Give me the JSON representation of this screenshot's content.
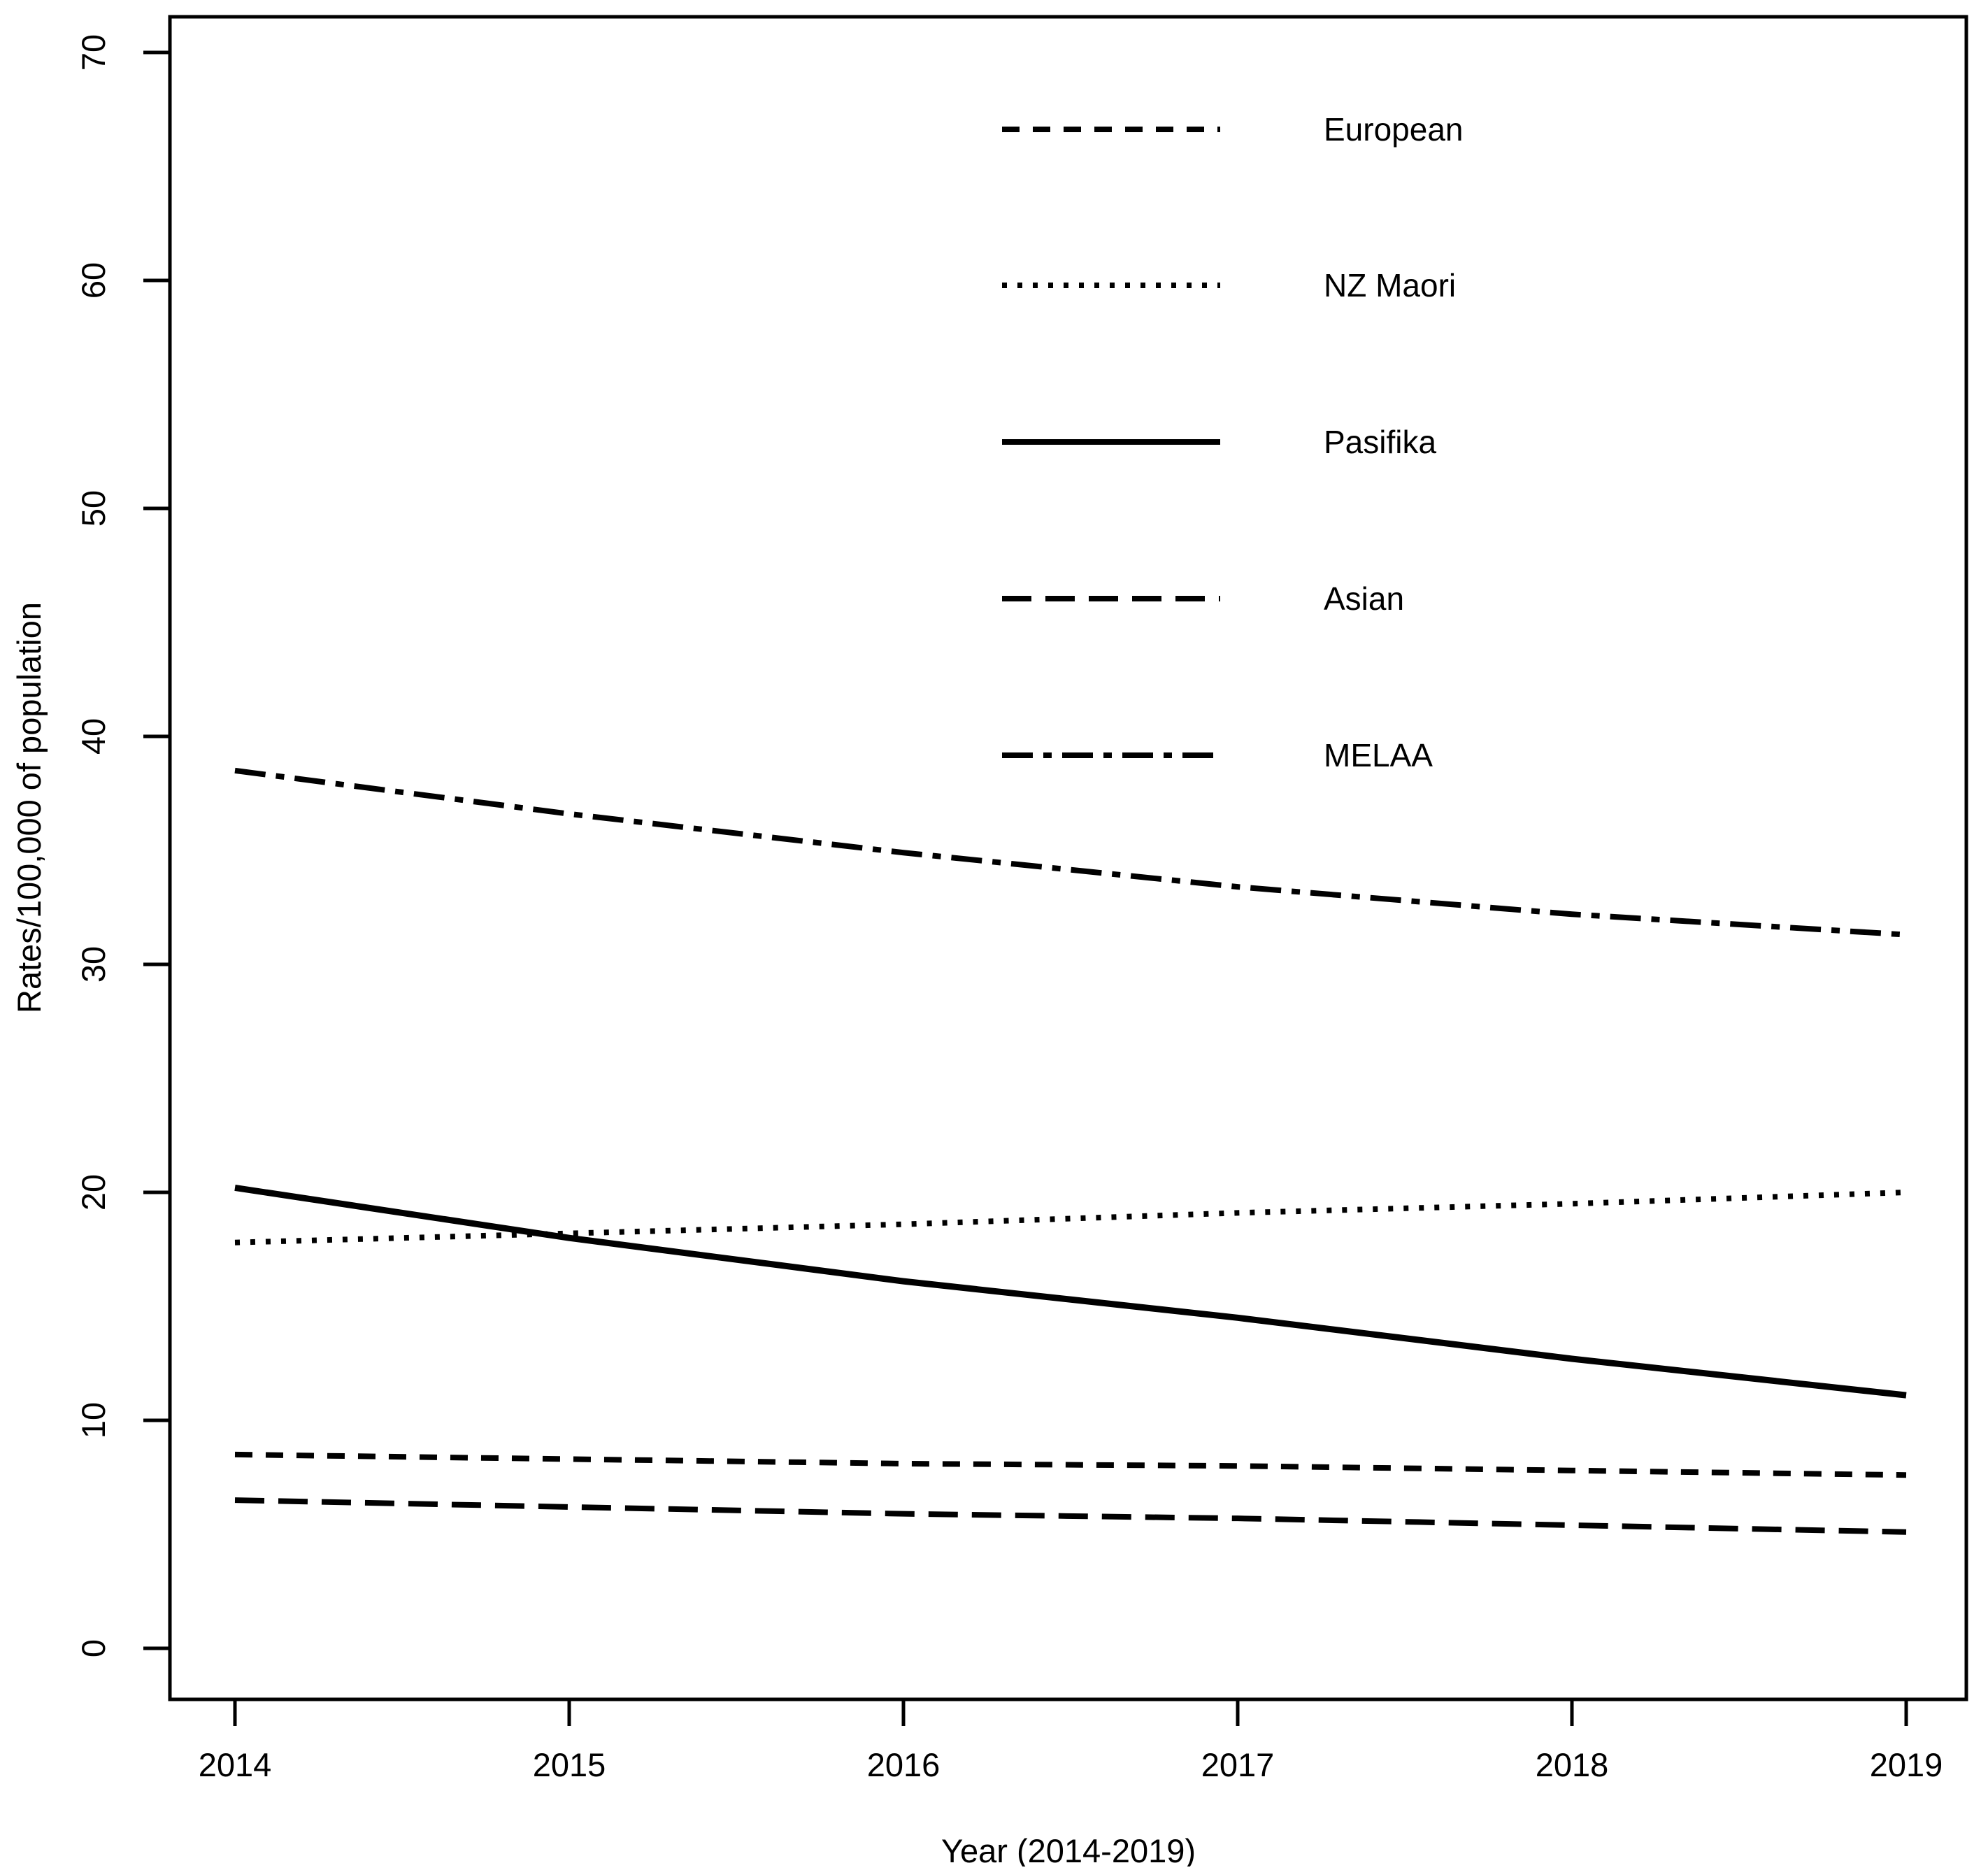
{
  "chart_data": {
    "type": "line",
    "title": "",
    "xlabel": "Year (2014-2019)",
    "ylabel": "Rates/100,000 of population",
    "x": [
      2014,
      2015,
      2016,
      2017,
      2018,
      2019
    ],
    "x_tick_labels": [
      "2014",
      "2015",
      "2016",
      "2017",
      "2018",
      "2019"
    ],
    "y_ticks": [
      0,
      10,
      20,
      30,
      40,
      50,
      60,
      70
    ],
    "ylim": [
      -2,
      71
    ],
    "xlim": [
      2014,
      2019
    ],
    "grid": "off",
    "legend_position": "top-right-inside",
    "line_color": "#000000",
    "background_color": "#ffffff",
    "series": [
      {
        "name": "European",
        "line_style": "dashed",
        "values": [
          8.5,
          8.3,
          8.1,
          8.0,
          7.8,
          7.6
        ]
      },
      {
        "name": "NZ Maori",
        "line_style": "dotted",
        "values": [
          17.8,
          18.2,
          18.6,
          19.1,
          19.5,
          20.0
        ]
      },
      {
        "name": "Pasifika",
        "line_style": "solid",
        "values": [
          20.2,
          18.0,
          16.1,
          14.5,
          12.7,
          11.1
        ]
      },
      {
        "name": "Asian",
        "line_style": "longdash",
        "values": [
          6.5,
          6.2,
          5.9,
          5.7,
          5.4,
          5.1
        ]
      },
      {
        "name": "MELAA",
        "line_style": "dotdash",
        "values": [
          38.5,
          36.6,
          34.9,
          33.4,
          32.2,
          31.3
        ]
      }
    ],
    "legend_order": [
      "European",
      "NZ Maori",
      "Pasifika",
      "Asian",
      "MELAA"
    ]
  }
}
